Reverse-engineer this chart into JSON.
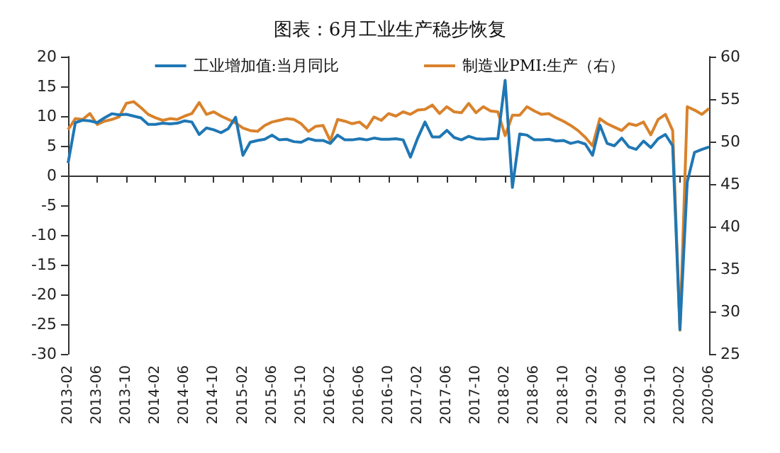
{
  "chart_data": {
    "type": "line",
    "title": "图表：6月工业生产稳步恢复",
    "categories": [
      "2013-02",
      null,
      null,
      null,
      "2013-06",
      null,
      null,
      null,
      "2013-10",
      null,
      null,
      null,
      "2014-02",
      null,
      null,
      null,
      "2014-06",
      null,
      null,
      null,
      "2014-10",
      null,
      null,
      null,
      "2015-02",
      null,
      null,
      null,
      "2015-06",
      null,
      null,
      null,
      "2015-10",
      null,
      null,
      null,
      "2016-02",
      null,
      null,
      null,
      "2016-06",
      null,
      null,
      null,
      "2016-10",
      null,
      null,
      null,
      "2017-02",
      null,
      null,
      null,
      "2017-06",
      null,
      null,
      null,
      "2017-10",
      null,
      null,
      null,
      "2018-02",
      null,
      null,
      null,
      "2018-06",
      null,
      null,
      null,
      "2018-10",
      null,
      null,
      null,
      "2019-02",
      null,
      null,
      null,
      "2019-06",
      null,
      null,
      null,
      "2019-10",
      null,
      null,
      null,
      "2020-02",
      null,
      null,
      null,
      "2020-06"
    ],
    "series": [
      {
        "name": "工业增加值:当月同比",
        "color": "#1f77b4",
        "values": [
          2.1,
          8.9,
          9.3,
          9.2,
          8.9,
          9.7,
          10.4,
          10.2,
          10.3,
          10.0,
          9.7,
          8.6,
          8.6,
          8.8,
          8.7,
          8.8,
          9.2,
          9.0,
          6.9,
          8.0,
          7.7,
          7.2,
          7.9,
          9.8,
          3.4,
          5.6,
          5.9,
          6.1,
          6.8,
          6.0,
          6.1,
          5.7,
          5.6,
          6.2,
          5.9,
          5.9,
          5.4,
          6.8,
          6.0,
          6.0,
          6.2,
          6.0,
          6.3,
          6.1,
          6.1,
          6.2,
          6.0,
          3.1,
          6.3,
          9.0,
          6.5,
          6.5,
          7.6,
          6.4,
          6.0,
          6.6,
          6.2,
          6.1,
          6.2,
          6.2,
          16.0,
          -2.0,
          7.0,
          6.8,
          6.0,
          6.0,
          6.1,
          5.8,
          5.9,
          5.4,
          5.7,
          5.3,
          3.4,
          8.5,
          5.4,
          5.0,
          6.3,
          4.8,
          4.4,
          5.8,
          4.7,
          6.2,
          6.9,
          5.0,
          -25.9,
          -1.1,
          3.9,
          4.4,
          4.8
        ]
      },
      {
        "name": "制造业PMI:生产（右）",
        "color": "#d9822b",
        "axis": "y2",
        "values": [
          51.4,
          52.7,
          52.6,
          53.3,
          52.0,
          52.4,
          52.6,
          52.9,
          54.5,
          54.7,
          54.0,
          53.2,
          52.8,
          52.5,
          52.7,
          52.6,
          53.0,
          53.3,
          54.6,
          53.2,
          53.5,
          53.0,
          52.6,
          52.2,
          51.6,
          51.3,
          51.2,
          51.9,
          52.3,
          52.5,
          52.7,
          52.6,
          52.1,
          51.2,
          51.8,
          51.9,
          50.1,
          52.6,
          52.4,
          52.1,
          52.3,
          51.6,
          52.9,
          52.5,
          53.3,
          53.0,
          53.5,
          53.2,
          53.7,
          53.8,
          54.3,
          53.3,
          54.1,
          53.5,
          53.4,
          54.5,
          53.4,
          54.1,
          53.6,
          53.5,
          50.7,
          53.1,
          53.1,
          54.1,
          53.6,
          53.2,
          53.3,
          52.8,
          52.4,
          51.9,
          51.3,
          50.5,
          49.5,
          52.7,
          52.1,
          51.7,
          51.3,
          52.1,
          51.9,
          52.3,
          50.8,
          52.6,
          53.2,
          51.3,
          27.8,
          54.1,
          53.7,
          53.2,
          53.9
        ]
      }
    ],
    "ylim": [
      -30,
      20
    ],
    "yticks": [
      -30,
      -25,
      -20,
      -15,
      -10,
      -5,
      0,
      5,
      10,
      15,
      20
    ],
    "y2lim": [
      25,
      60
    ],
    "y2ticks": [
      25,
      30,
      35,
      40,
      45,
      50,
      55,
      60
    ],
    "legend": "top",
    "line_style": "solid"
  }
}
